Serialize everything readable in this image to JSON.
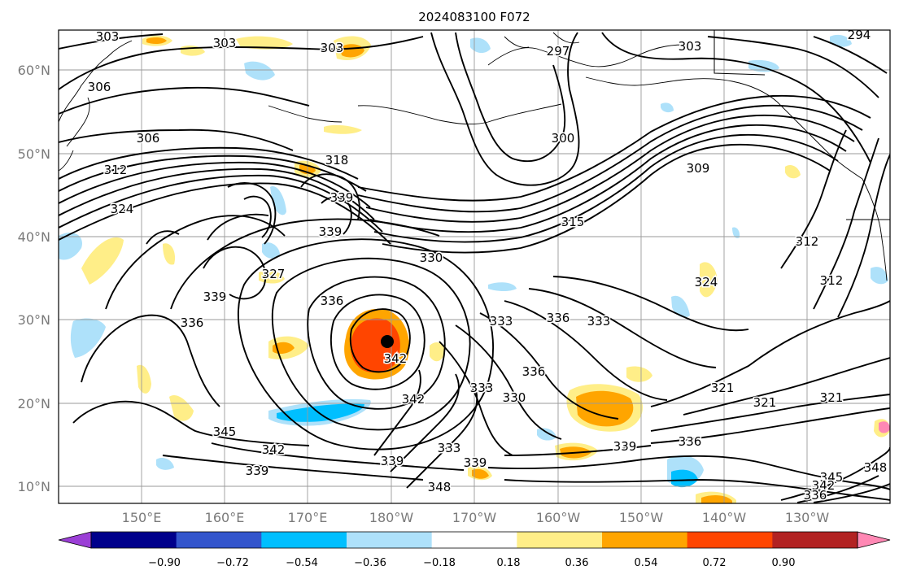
{
  "title": "2024083100 F072",
  "colors": {
    "bins": [
      "#9b3fd6",
      "#00008b",
      "#3355cc",
      "#00bfff",
      "#aee1fa",
      "#ffffff",
      "#ffee88",
      "#ffa500",
      "#ff4500",
      "#b22222",
      "#ff88b4"
    ],
    "contour": "#000000",
    "grid": "#9a9a9a",
    "tick_text": "#7a7a7a"
  },
  "lat_ticks": [
    "60°N",
    "50°N",
    "40°N",
    "30°N",
    "20°N",
    "10°N"
  ],
  "lon_ticks": [
    "150°E",
    "160°E",
    "170°E",
    "180°W",
    "170°W",
    "160°W",
    "150°W",
    "140°W",
    "130°W"
  ],
  "colorbar": {
    "ticks": [
      "−0.90",
      "−0.72",
      "−0.54",
      "−0.36",
      "−0.18",
      "0.18",
      "0.36",
      "0.54",
      "0.72",
      "0.90"
    ]
  },
  "contour_labels": [
    "303",
    "303",
    "303",
    "303",
    "297",
    "294",
    "306",
    "306",
    "312",
    "324",
    "318",
    "339",
    "339",
    "327",
    "330",
    "315",
    "309",
    "312",
    "312",
    "336",
    "339",
    "336",
    "333",
    "336",
    "333",
    "321",
    "342",
    "342",
    "336",
    "330",
    "333",
    "345",
    "342",
    "339",
    "339",
    "333",
    "339",
    "348",
    "339",
    "336",
    "345",
    "342",
    "336",
    "348",
    "321",
    "321",
    "324",
    "300"
  ]
}
